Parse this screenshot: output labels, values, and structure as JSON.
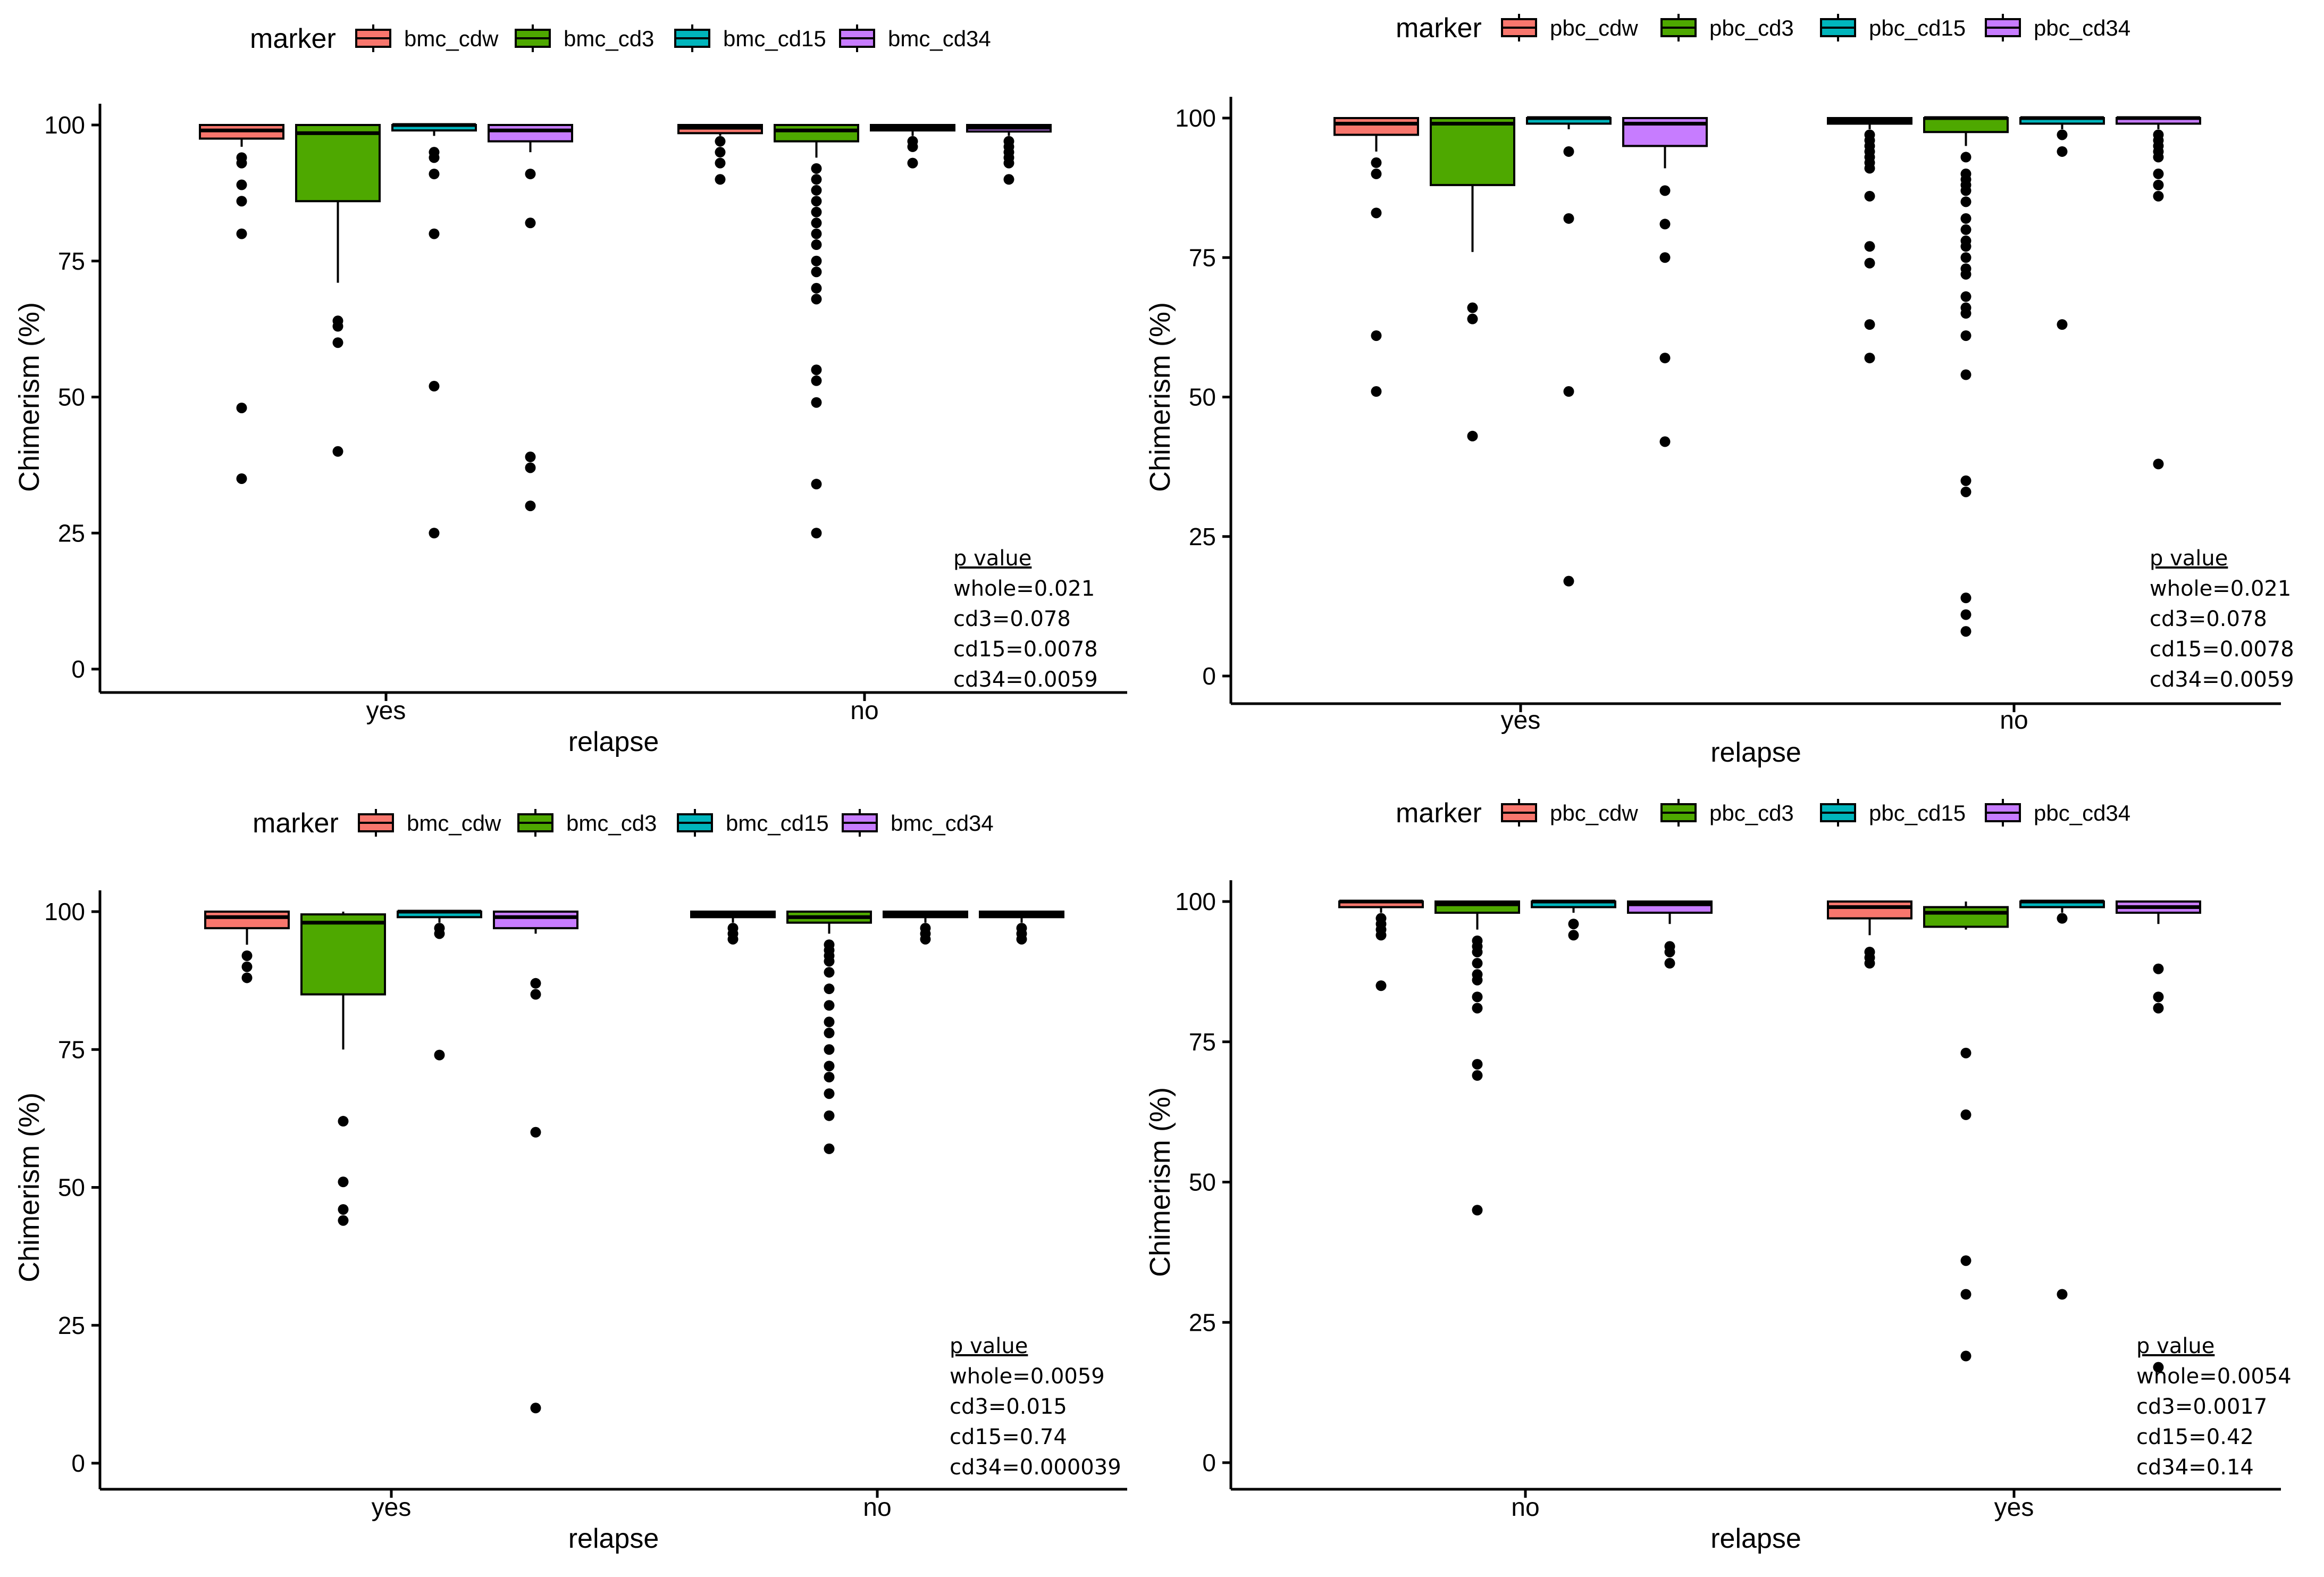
{
  "colors": {
    "cdw": "#F8766D",
    "cd3": "#4EA800",
    "cd15": "#00B5BC",
    "cd34": "#C77CFF",
    "outlier": "#000000"
  },
  "chart_data": [
    {
      "type": "boxplot",
      "legend_title": "marker",
      "legend_position": "top",
      "markers": [
        "bmc_cdw",
        "bmc_cd3",
        "bmc_cd15",
        "bmc_cd34"
      ],
      "xlabel": "relapse",
      "ylabel": "Chimerism (%)",
      "ylim": [
        0,
        100
      ],
      "yticks": [
        0,
        25,
        50,
        75,
        100
      ],
      "groups": [
        {
          "label": "yes",
          "boxes": [
            {
              "q1": 97.5,
              "median": 99,
              "q3": 100,
              "whisker_low": 96,
              "whisker_high": 100,
              "outliers": [
                94,
                93,
                89,
                86,
                80,
                48,
                35
              ]
            },
            {
              "q1": 86,
              "median": 98.5,
              "q3": 100,
              "whisker_low": 71,
              "whisker_high": 100,
              "outliers": [
                64,
                63,
                60,
                40
              ]
            },
            {
              "q1": 99,
              "median": 100,
              "q3": 100,
              "whisker_low": 98,
              "whisker_high": 100,
              "outliers": [
                95,
                94,
                91,
                80,
                52,
                25
              ]
            },
            {
              "q1": 97,
              "median": 99,
              "q3": 100,
              "whisker_low": 95,
              "whisker_high": 100,
              "outliers": [
                91,
                82,
                39,
                37,
                30
              ]
            }
          ]
        },
        {
          "label": "no",
          "boxes": [
            {
              "q1": 98.5,
              "median": 99.5,
              "q3": 100,
              "whisker_low": 98,
              "whisker_high": 100,
              "outliers": [
                97,
                95,
                93,
                90
              ]
            },
            {
              "q1": 97,
              "median": 99,
              "q3": 100,
              "whisker_low": 94,
              "whisker_high": 100,
              "outliers": [
                92,
                90,
                88,
                86,
                84,
                82,
                80,
                78,
                75,
                73,
                70,
                68,
                55,
                53,
                49,
                34,
                25
              ]
            },
            {
              "q1": 99,
              "median": 99.5,
              "q3": 100,
              "whisker_low": 98,
              "whisker_high": 100,
              "outliers": [
                97,
                96,
                93
              ]
            },
            {
              "q1": 98.8,
              "median": 99.5,
              "q3": 100,
              "whisker_low": 98,
              "whisker_high": 100,
              "outliers": [
                97,
                96,
                95,
                94,
                93,
                90
              ]
            }
          ]
        }
      ],
      "pvalue": {
        "title": "p value",
        "lines": [
          "whole=0.021",
          "cd3=0.078",
          "cd15=0.0078",
          "cd34=0.0059"
        ]
      }
    },
    {
      "type": "boxplot",
      "legend_title": "marker",
      "legend_position": "top",
      "markers": [
        "pbc_cdw",
        "pbc_cd3",
        "pbc_cd15",
        "pbc_cd34"
      ],
      "xlabel": "relapse",
      "ylabel": "Chimerism (%)",
      "ylim": [
        0,
        100
      ],
      "yticks": [
        0,
        25,
        50,
        75,
        100
      ],
      "groups": [
        {
          "label": "yes",
          "boxes": [
            {
              "q1": 97,
              "median": 99,
              "q3": 100,
              "whisker_low": 94,
              "whisker_high": 100,
              "outliers": [
                92,
                90,
                83,
                61,
                51
              ]
            },
            {
              "q1": 88,
              "median": 99,
              "q3": 100,
              "whisker_low": 76,
              "whisker_high": 100,
              "outliers": [
                66,
                64,
                43
              ]
            },
            {
              "q1": 99,
              "median": 100,
              "q3": 100,
              "whisker_low": 98,
              "whisker_high": 100,
              "outliers": [
                94,
                82,
                51,
                17
              ]
            },
            {
              "q1": 95,
              "median": 99,
              "q3": 100,
              "whisker_low": 91,
              "whisker_high": 100,
              "outliers": [
                87,
                81,
                75,
                57,
                42
              ]
            }
          ]
        },
        {
          "label": "no",
          "boxes": [
            {
              "q1": 99,
              "median": 99.5,
              "q3": 100,
              "whisker_low": 98,
              "whisker_high": 100,
              "outliers": [
                97,
                96,
                95,
                94,
                93,
                92,
                91,
                86,
                77,
                74,
                63,
                57
              ]
            },
            {
              "q1": 97.5,
              "median": 100,
              "q3": 100,
              "whisker_low": 95,
              "whisker_high": 100,
              "outliers": [
                93,
                90,
                89,
                88,
                87,
                85,
                82,
                80,
                78,
                77,
                75,
                73,
                72,
                68,
                66,
                65,
                61,
                54,
                35,
                33,
                14,
                11,
                8
              ]
            },
            {
              "q1": 99,
              "median": 100,
              "q3": 100,
              "whisker_low": 98,
              "whisker_high": 100,
              "outliers": [
                97,
                94,
                63
              ]
            },
            {
              "q1": 99,
              "median": 100,
              "q3": 100,
              "whisker_low": 98,
              "whisker_high": 100,
              "outliers": [
                97,
                96,
                95,
                94,
                93,
                90,
                88,
                86,
                38
              ]
            }
          ]
        }
      ],
      "pvalue": {
        "title": "p value",
        "lines": [
          "whole=0.021",
          "cd3=0.078",
          "cd15=0.0078",
          "cd34=0.0059"
        ]
      }
    },
    {
      "type": "boxplot",
      "legend_title": "marker",
      "legend_position": "top",
      "markers": [
        "bmc_cdw",
        "bmc_cd3",
        "bmc_cd15",
        "bmc_cd34"
      ],
      "xlabel": "relapse",
      "ylabel": "Chimerism (%)",
      "ylim": [
        0,
        100
      ],
      "yticks": [
        0,
        25,
        50,
        75,
        100
      ],
      "groups": [
        {
          "label": "yes",
          "boxes": [
            {
              "q1": 97,
              "median": 99,
              "q3": 100,
              "whisker_low": 94,
              "whisker_high": 100,
              "outliers": [
                92,
                90,
                88
              ]
            },
            {
              "q1": 85,
              "median": 98,
              "q3": 99.5,
              "whisker_low": 75,
              "whisker_high": 100,
              "outliers": [
                62,
                51,
                46,
                44
              ]
            },
            {
              "q1": 99,
              "median": 100,
              "q3": 100,
              "whisker_low": 98,
              "whisker_high": 100,
              "outliers": [
                97,
                96,
                74
              ]
            },
            {
              "q1": 97,
              "median": 99,
              "q3": 100,
              "whisker_low": 96,
              "whisker_high": 100,
              "outliers": [
                87,
                85,
                60,
                10
              ]
            }
          ]
        },
        {
          "label": "no",
          "boxes": [
            {
              "q1": 99,
              "median": 99.5,
              "q3": 100,
              "whisker_low": 98,
              "whisker_high": 100,
              "outliers": [
                97,
                96,
                95
              ]
            },
            {
              "q1": 98,
              "median": 99,
              "q3": 100,
              "whisker_low": 96,
              "whisker_high": 100,
              "outliers": [
                94,
                93,
                92,
                91,
                89,
                86,
                83,
                80,
                78,
                75,
                72,
                70,
                67,
                63,
                57
              ]
            },
            {
              "q1": 99,
              "median": 99.5,
              "q3": 100,
              "whisker_low": 98,
              "whisker_high": 100,
              "outliers": [
                97,
                96,
                95
              ]
            },
            {
              "q1": 99,
              "median": 99.5,
              "q3": 100,
              "whisker_low": 98,
              "whisker_high": 100,
              "outliers": [
                97,
                96,
                95
              ]
            }
          ]
        }
      ],
      "pvalue": {
        "title": "p value",
        "lines": [
          "whole=0.0059",
          "cd3=0.015",
          "cd15=0.74",
          "cd34=0.000039"
        ]
      }
    },
    {
      "type": "boxplot",
      "legend_title": "marker",
      "legend_position": "top",
      "markers": [
        "pbc_cdw",
        "pbc_cd3",
        "pbc_cd15",
        "pbc_cd34"
      ],
      "xlabel": "relapse",
      "ylabel": "Chimerism (%)",
      "ylim": [
        0,
        100
      ],
      "yticks": [
        0,
        25,
        50,
        75,
        100
      ],
      "groups": [
        {
          "label": "no",
          "boxes": [
            {
              "q1": 99,
              "median": 100,
              "q3": 100,
              "whisker_low": 98,
              "whisker_high": 100,
              "outliers": [
                97,
                96,
                95,
                94,
                85
              ]
            },
            {
              "q1": 98,
              "median": 99.5,
              "q3": 100,
              "whisker_low": 95,
              "whisker_high": 100,
              "outliers": [
                93,
                92,
                91,
                89,
                87,
                86,
                83,
                81,
                71,
                69,
                45
              ]
            },
            {
              "q1": 99,
              "median": 100,
              "q3": 100,
              "whisker_low": 98,
              "whisker_high": 100,
              "outliers": [
                96,
                94
              ]
            },
            {
              "q1": 98,
              "median": 99.5,
              "q3": 100,
              "whisker_low": 96,
              "whisker_high": 100,
              "outliers": [
                92,
                91,
                89
              ]
            }
          ]
        },
        {
          "label": "yes",
          "boxes": [
            {
              "q1": 97,
              "median": 99,
              "q3": 100,
              "whisker_low": 94,
              "whisker_high": 100,
              "outliers": [
                91,
                90,
                89
              ]
            },
            {
              "q1": 95.5,
              "median": 98,
              "q3": 99,
              "whisker_low": 95,
              "whisker_high": 100,
              "outliers": [
                73,
                62,
                36,
                30,
                19
              ]
            },
            {
              "q1": 99,
              "median": 100,
              "q3": 100,
              "whisker_low": 98,
              "whisker_high": 100,
              "outliers": [
                97,
                30
              ]
            },
            {
              "q1": 98,
              "median": 99,
              "q3": 100,
              "whisker_low": 96,
              "whisker_high": 100,
              "outliers": [
                88,
                83,
                81,
                17
              ]
            }
          ]
        }
      ],
      "pvalue": {
        "title": "p value",
        "lines": [
          "whole=0.0054",
          "cd3=0.0017",
          "cd15=0.42",
          "cd34=0.14"
        ]
      }
    }
  ]
}
